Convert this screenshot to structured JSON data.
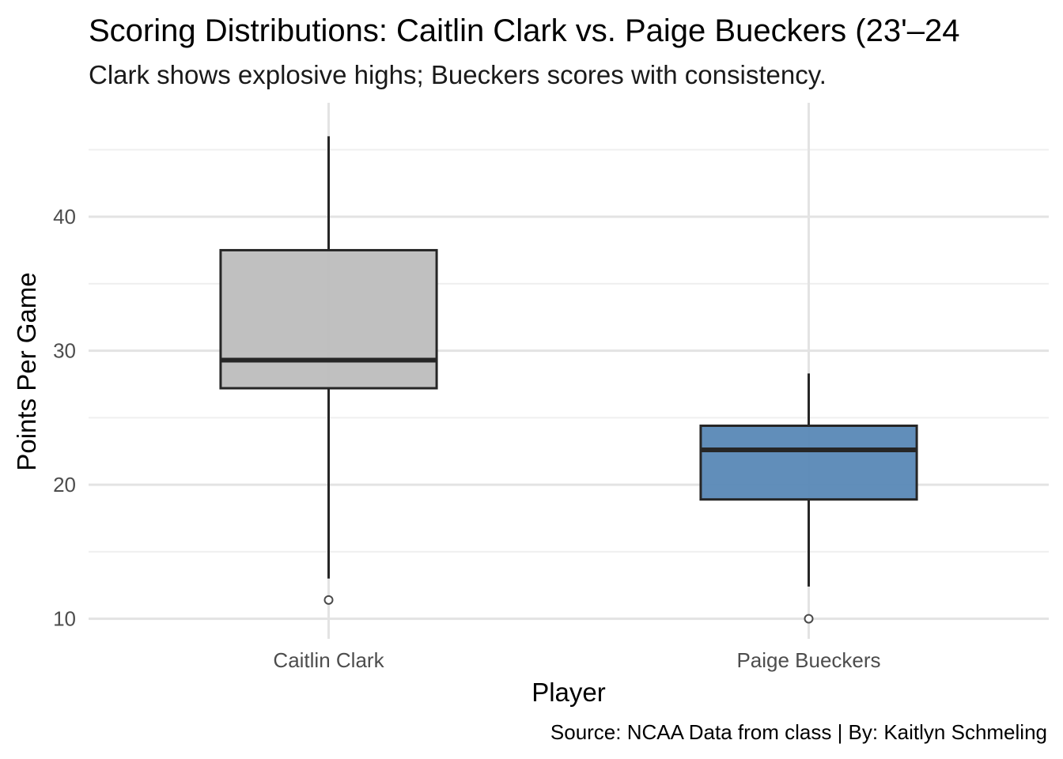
{
  "chart_data": {
    "type": "boxplot",
    "title": "Scoring Distributions: Caitlin Clark vs. Paige Bueckers (23'–24",
    "subtitle": "Clark shows explosive highs; Bueckers scores with consistency.",
    "xlabel": "Player",
    "ylabel": "Points Per Game",
    "caption": "Source: NCAA Data from class | By: Kaitlyn Schmeling",
    "categories": [
      "Caitlin Clark",
      "Paige Bueckers"
    ],
    "ylim": [
      8.5,
      48.5
    ],
    "yticks": [
      10,
      20,
      30,
      40
    ],
    "grid": true,
    "legend": "none",
    "boxes": [
      {
        "name": "Caitlin Clark",
        "whisker_low": 13,
        "q1": 27.2,
        "median": 29.3,
        "q3": 37.5,
        "whisker_high": 46,
        "outliers": [
          11.4
        ],
        "color": "#bebebe"
      },
      {
        "name": "Paige Bueckers",
        "whisker_low": 12.4,
        "q1": 18.9,
        "median": 22.6,
        "q3": 24.4,
        "whisker_high": 28.3,
        "outliers": [
          10
        ],
        "color": "#5c8ab8"
      }
    ]
  }
}
